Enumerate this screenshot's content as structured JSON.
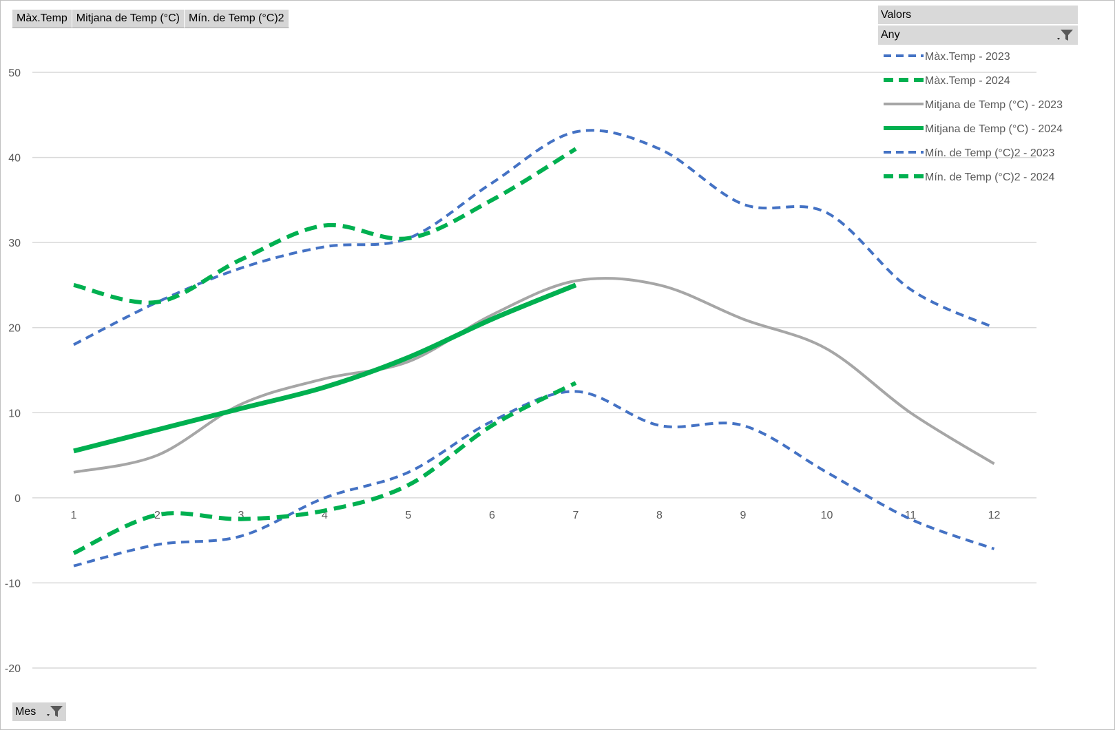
{
  "field_buttons": [
    "Màx.Temp",
    "Mitjana de Temp (°C)",
    "Mín. de Temp (°C)2"
  ],
  "legend_header": "Valors",
  "legend_filter": "Any",
  "axis_field": "Mes",
  "chart_data": {
    "type": "line",
    "categories": [
      "1",
      "2",
      "3",
      "4",
      "5",
      "6",
      "7",
      "8",
      "9",
      "10",
      "11",
      "12"
    ],
    "ylim": [
      -20,
      50
    ],
    "yticks": [
      -20,
      -10,
      0,
      10,
      20,
      30,
      40,
      50
    ],
    "grid": true,
    "legend_position": "top-right",
    "series": [
      {
        "name": "Màx.Temp - 2023",
        "values": [
          18,
          23,
          27,
          29.5,
          30.5,
          37,
          43,
          41,
          34.5,
          33.5,
          24.5,
          20
        ],
        "color": "#4472c4",
        "style": "dashed",
        "width": 4
      },
      {
        "name": "Màx.Temp - 2024",
        "values": [
          25,
          23,
          28,
          32,
          30.5,
          35,
          41,
          null,
          null,
          null,
          null,
          null
        ],
        "color": "#00b050",
        "style": "dashed",
        "width": 6
      },
      {
        "name": "Mitjana de Temp (°C) - 2023",
        "values": [
          3,
          5,
          11,
          14,
          16,
          21.5,
          25.5,
          25,
          21,
          17.5,
          10,
          4
        ],
        "color": "#a6a6a6",
        "style": "solid",
        "width": 4
      },
      {
        "name": "Mitjana de Temp (°C) - 2024",
        "values": [
          5.5,
          8,
          10.5,
          13,
          16.5,
          21,
          25,
          null,
          null,
          null,
          null,
          null
        ],
        "color": "#00b050",
        "style": "solid",
        "width": 7
      },
      {
        "name": "Mín. de Temp (°C)2 - 2023",
        "values": [
          -8,
          -5.5,
          -4.5,
          0,
          3,
          9,
          12.5,
          8.5,
          8.5,
          3,
          -2.5,
          -6
        ],
        "color": "#4472c4",
        "style": "dashed",
        "width": 4
      },
      {
        "name": "Mín. de Temp (°C)2 - 2024",
        "values": [
          -6.5,
          -2,
          -2.5,
          -1.5,
          1.5,
          8.5,
          13.5,
          null,
          null,
          null,
          null,
          null
        ],
        "color": "#00b050",
        "style": "dashed",
        "width": 6
      }
    ]
  }
}
